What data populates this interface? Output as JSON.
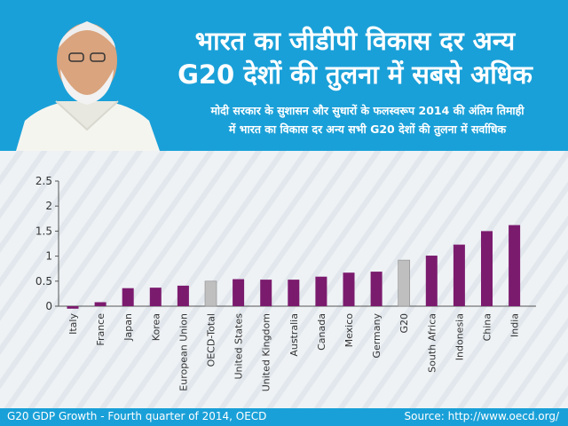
{
  "header": {
    "title_line1": "भारत का जीडीपी विकास दर अन्य",
    "title_line2": "G20 देशों की तुलना में सबसे अधिक",
    "subtitle_line1": "मोदी सरकार के सुशासन और सुधारों के फलस्वरूप 2014 की अंतिम तिमाही",
    "subtitle_line2": "में भारत का विकास दर अन्य सभी G20 देशों की तुलना में सर्वाधिक"
  },
  "footer": {
    "caption": "G20 GDP Growth - Fourth quarter of 2014, OECD",
    "source": "Source: http://www.oecd.org/"
  },
  "colors": {
    "header_bg": "#1aa0d8",
    "bar_purple": "#7b1b6e",
    "bar_grey": "#bfbfbf"
  },
  "chart_data": {
    "type": "bar",
    "categories": [
      "Italy",
      "France",
      "Japan",
      "Korea",
      "European Union",
      "OECD-Total",
      "United States",
      "United Kingdom",
      "Australia",
      "Canada",
      "Mexico",
      "Germany",
      "G20",
      "South Africa",
      "Indonesia",
      "China",
      "India"
    ],
    "values": [
      -0.05,
      0.08,
      0.36,
      0.37,
      0.41,
      0.5,
      0.54,
      0.53,
      0.53,
      0.59,
      0.67,
      0.69,
      0.92,
      1.01,
      1.23,
      1.5,
      1.62
    ],
    "highlight": [
      "OECD-Total",
      "G20"
    ],
    "yticks": [
      "0",
      "0.5",
      "1",
      "1.5",
      "2",
      "2.5"
    ],
    "ylim": [
      -0.05,
      2.5
    ],
    "grid": false
  }
}
